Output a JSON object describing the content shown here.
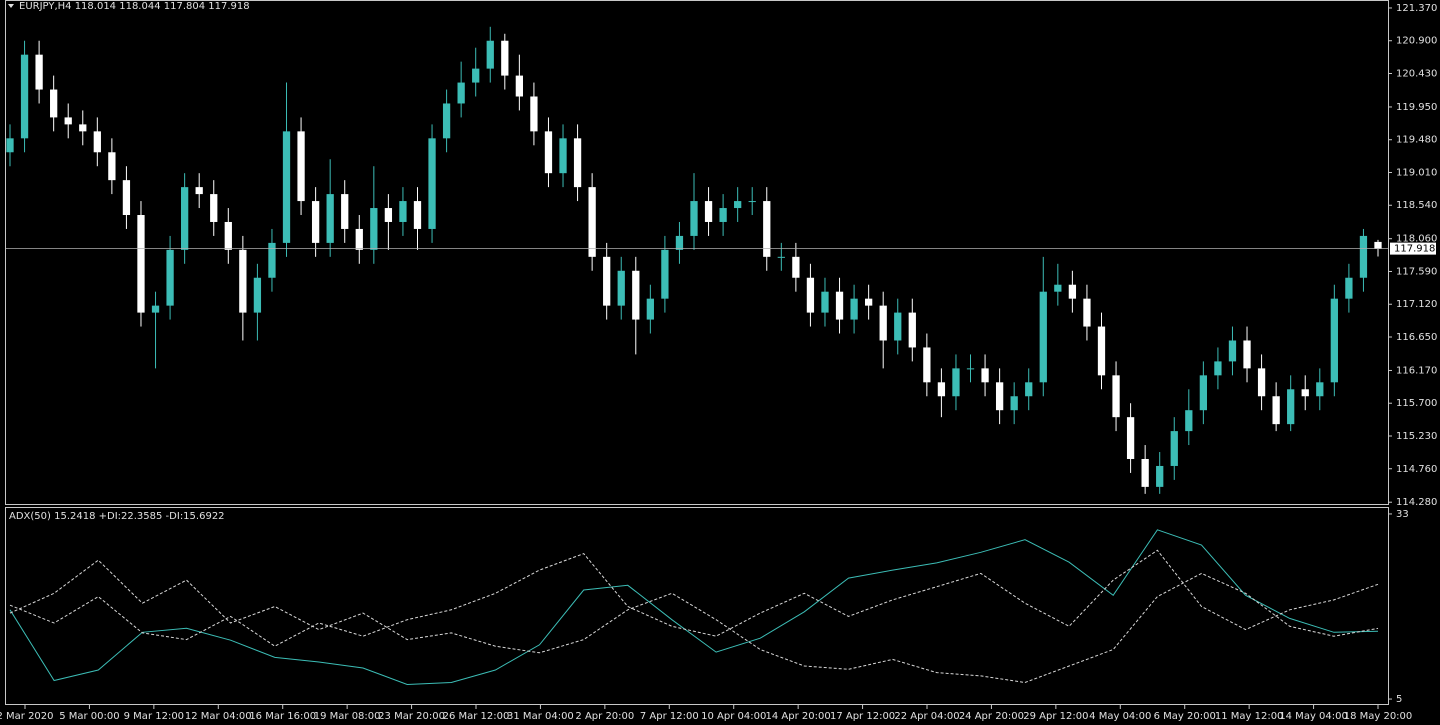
{
  "chart_data": [
    {
      "type": "candlestick",
      "title": "EURJPY,H4 118.014 118.044 117.804 117.918",
      "open": [
        119.3,
        119.5,
        120.7,
        120.2,
        119.8,
        119.7,
        119.6,
        119.3,
        118.9,
        118.4,
        117.0,
        117.1,
        117.9,
        118.8,
        118.7,
        118.3,
        117.9,
        117.0,
        117.5,
        118.0,
        119.6,
        118.6,
        118.0,
        118.7,
        118.2,
        117.9,
        118.5,
        118.3,
        118.6,
        118.2,
        119.5,
        120.0,
        120.3,
        120.5,
        120.9,
        120.4,
        120.1,
        119.6,
        119.0,
        119.5,
        118.8,
        117.8,
        117.1,
        117.6,
        116.9,
        117.2,
        117.9,
        118.1,
        118.6,
        118.3,
        118.5,
        118.6,
        118.6,
        117.8,
        117.8,
        117.5,
        117.0,
        117.3,
        116.9,
        117.2,
        117.1,
        116.6,
        117.0,
        116.5,
        116.0,
        115.8,
        116.2,
        116.2,
        116.0,
        115.6,
        115.8,
        116.0,
        117.3,
        117.4,
        117.2,
        116.8,
        116.1,
        115.5,
        114.9,
        114.5,
        114.8,
        115.3,
        115.6,
        116.1,
        116.3,
        116.6,
        116.2,
        115.8,
        115.4,
        115.9,
        115.8,
        116.0,
        117.2,
        117.5,
        118.014
      ],
      "high": [
        119.7,
        120.9,
        120.9,
        120.4,
        120.0,
        119.9,
        119.8,
        119.5,
        119.1,
        118.6,
        117.3,
        118.1,
        119.0,
        119.0,
        118.9,
        118.5,
        118.1,
        117.7,
        118.2,
        120.3,
        119.8,
        118.8,
        119.2,
        118.9,
        118.4,
        119.1,
        118.7,
        118.8,
        118.8,
        119.7,
        120.2,
        120.6,
        120.8,
        121.1,
        121.0,
        120.7,
        120.3,
        119.8,
        119.7,
        119.7,
        119.0,
        118.0,
        117.8,
        117.8,
        117.4,
        118.1,
        118.3,
        119.0,
        118.8,
        118.7,
        118.8,
        118.8,
        118.8,
        118.0,
        118.0,
        117.7,
        117.5,
        117.5,
        117.4,
        117.4,
        117.3,
        117.2,
        117.2,
        116.7,
        116.2,
        116.4,
        116.4,
        116.4,
        116.2,
        116.0,
        116.2,
        117.8,
        117.7,
        117.6,
        117.4,
        117.0,
        116.3,
        115.7,
        115.1,
        115.0,
        115.5,
        115.9,
        116.3,
        116.5,
        116.8,
        116.8,
        116.4,
        116.0,
        116.1,
        116.1,
        116.2,
        117.4,
        117.7,
        118.2,
        118.044
      ],
      "low": [
        119.1,
        119.3,
        120.0,
        119.6,
        119.5,
        119.4,
        119.1,
        118.7,
        118.2,
        116.8,
        116.2,
        116.9,
        117.7,
        118.5,
        118.1,
        117.7,
        116.6,
        116.6,
        117.3,
        117.8,
        118.4,
        117.8,
        117.8,
        118.0,
        117.7,
        117.7,
        117.9,
        118.1,
        117.9,
        118.0,
        119.3,
        119.8,
        120.1,
        120.3,
        120.2,
        119.9,
        119.4,
        118.8,
        118.8,
        118.6,
        117.6,
        116.9,
        116.9,
        116.4,
        116.7,
        117.0,
        117.7,
        117.9,
        118.1,
        118.1,
        118.3,
        118.4,
        117.6,
        117.6,
        117.3,
        116.8,
        116.8,
        116.7,
        116.7,
        116.9,
        116.2,
        116.4,
        116.3,
        115.8,
        115.5,
        115.6,
        116.0,
        115.8,
        115.4,
        115.4,
        115.6,
        115.8,
        117.1,
        117.0,
        116.6,
        115.9,
        115.3,
        114.7,
        114.4,
        114.4,
        114.6,
        115.1,
        115.4,
        115.9,
        116.1,
        116.0,
        115.6,
        115.3,
        115.3,
        115.6,
        115.6,
        115.8,
        117.0,
        117.3,
        117.804
      ],
      "close": [
        119.5,
        120.7,
        120.2,
        119.8,
        119.7,
        119.6,
        119.3,
        118.9,
        118.4,
        117.0,
        117.1,
        117.9,
        118.8,
        118.7,
        118.3,
        117.9,
        117.0,
        117.5,
        118.0,
        119.6,
        118.6,
        118.0,
        118.7,
        118.2,
        117.9,
        118.5,
        118.3,
        118.6,
        118.2,
        119.5,
        120.0,
        120.3,
        120.5,
        120.9,
        120.4,
        120.1,
        119.6,
        119.0,
        119.5,
        118.8,
        117.8,
        117.1,
        117.6,
        116.9,
        117.2,
        117.9,
        118.1,
        118.6,
        118.3,
        118.5,
        118.6,
        118.6,
        117.8,
        117.8,
        117.5,
        117.0,
        117.3,
        116.9,
        117.2,
        117.1,
        116.6,
        117.0,
        116.5,
        116.0,
        115.8,
        116.2,
        116.2,
        116.0,
        115.6,
        115.8,
        116.0,
        117.3,
        117.4,
        117.2,
        116.8,
        116.1,
        115.5,
        114.9,
        114.5,
        114.8,
        115.3,
        115.6,
        116.1,
        116.3,
        116.6,
        116.2,
        115.8,
        115.4,
        115.9,
        115.8,
        116.0,
        117.2,
        117.5,
        118.1,
        117.918
      ],
      "up_color": "#3cbdb6",
      "down_color": "#ffffff",
      "ylim": [
        114.24,
        121.47
      ],
      "yticks": [
        {
          "value": 121.37,
          "label": "121.370"
        },
        {
          "value": 120.9,
          "label": "120.900"
        },
        {
          "value": 120.43,
          "label": "120.430"
        },
        {
          "value": 119.95,
          "label": "119.950"
        },
        {
          "value": 119.48,
          "label": "119.480"
        },
        {
          "value": 119.01,
          "label": "119.010"
        },
        {
          "value": 118.54,
          "label": "118.540"
        },
        {
          "value": 118.06,
          "label": "118.060"
        },
        {
          "value": 117.59,
          "label": "117.590"
        },
        {
          "value": 117.12,
          "label": "117.120"
        },
        {
          "value": 116.65,
          "label": "116.650"
        },
        {
          "value": 116.17,
          "label": "116.170"
        },
        {
          "value": 115.7,
          "label": "115.700"
        },
        {
          "value": 115.23,
          "label": "115.230"
        },
        {
          "value": 114.76,
          "label": "114.760"
        },
        {
          "value": 114.28,
          "label": "114.280"
        }
      ],
      "last_price": 117.918,
      "x_labels": [
        "2 Mar 2020",
        "5 Mar 00:00",
        "9 Mar 12:00",
        "12 Mar 04:00",
        "16 Mar 16:00",
        "19 Mar 08:00",
        "23 Mar 20:00",
        "26 Mar 12:00",
        "31 Mar 04:00",
        "2 Apr 20:00",
        "7 Apr 12:00",
        "10 Apr 04:00",
        "14 Apr 20:00",
        "17 Apr 12:00",
        "22 Apr 04:00",
        "24 Apr 20:00",
        "29 Apr 12:00",
        "4 May 04:00",
        "6 May 20:00",
        "11 May 12:00",
        "14 May 04:00",
        "18 May 20:00"
      ]
    },
    {
      "type": "line",
      "title": "ADX(50) 15.2418 +DI:22.3585 -DI:15.6922",
      "ylim": [
        4.1,
        33.9
      ],
      "yticks": [
        33,
        5
      ],
      "series": [
        {
          "color": "#3cbdb6",
          "dashed": false,
          "values": [
            18.5,
            7.8,
            9.4,
            15.1,
            15.7,
            13.9,
            11.3,
            10.6,
            9.7,
            7.2,
            7.5,
            9.4,
            13.2,
            21.5,
            22.2,
            17.0,
            12.1,
            14.2,
            18.2,
            23.3,
            24.5,
            25.6,
            27.2,
            29.1,
            25.7,
            20.7,
            30.6,
            28.3,
            20.7,
            17.2,
            15.1,
            15.2418
          ]
        },
        {
          "color": "#d8d8d8",
          "dashed": true,
          "values": [
            19.2,
            16.5,
            20.5,
            15.0,
            14.0,
            17.5,
            13.0,
            16.5,
            14.5,
            17.0,
            18.5,
            21.0,
            24.5,
            27.0,
            19.0,
            16.0,
            14.5,
            18.0,
            21.0,
            17.5,
            20.0,
            22.0,
            24.0,
            19.5,
            16.0,
            23.0,
            27.5,
            19.0,
            15.5,
            18.5,
            20.0,
            22.3585
          ]
        },
        {
          "color": "#d8d8d8",
          "dashed": true,
          "values": [
            18.0,
            21.0,
            26.0,
            19.5,
            23.0,
            16.5,
            19.0,
            15.5,
            18.0,
            14.0,
            15.0,
            13.0,
            12.0,
            14.0,
            18.5,
            21.0,
            17.0,
            12.5,
            10.0,
            9.5,
            11.0,
            9.0,
            8.5,
            7.5,
            10.0,
            12.5,
            20.5,
            24.0,
            21.0,
            16.0,
            14.5,
            15.6922
          ]
        }
      ]
    }
  ]
}
